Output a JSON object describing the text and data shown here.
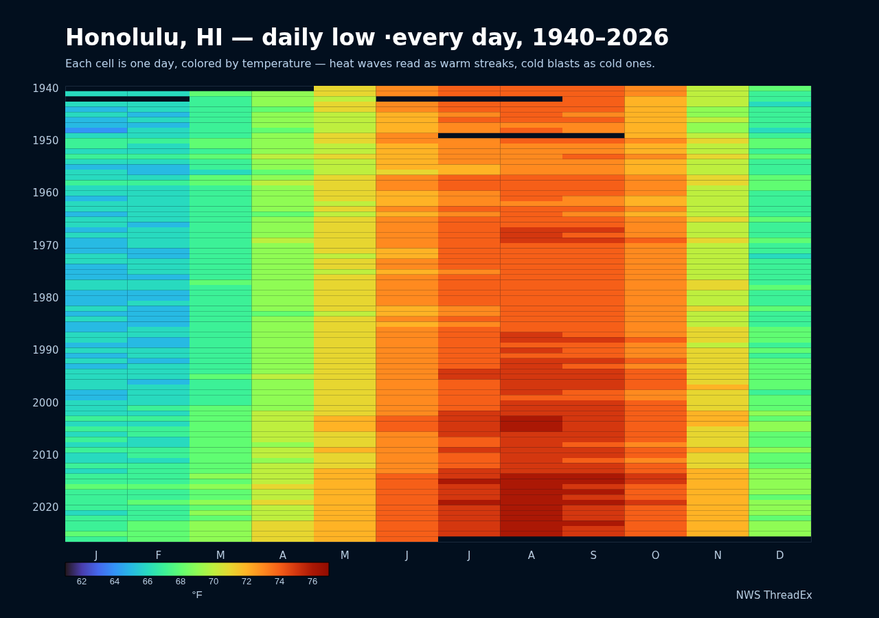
{
  "chart_data": {
    "type": "heatmap",
    "title": "Honolulu, HI — daily low ·every day, 1940–2026",
    "subtitle": "Each cell is one day, colored by temperature — heat waves read as warm streaks, cold blasts as cold ones.",
    "clabel": "°F",
    "clim": [
      61,
      77
    ],
    "cticks": [
      62,
      64,
      66,
      68,
      70,
      72,
      74,
      76
    ],
    "annotations": [
      "NWS ThreadEx"
    ],
    "categories": [
      "J",
      "F",
      "M",
      "A",
      "M",
      "J",
      "J",
      "A",
      "S",
      "O",
      "N",
      "D"
    ],
    "y_categories": [
      "1940",
      null,
      null,
      null,
      null,
      null,
      null,
      null,
      null,
      null,
      "1950",
      null,
      null,
      null,
      null,
      null,
      null,
      null,
      null,
      null,
      "1960",
      null,
      null,
      null,
      null,
      null,
      null,
      null,
      null,
      null,
      "1970",
      null,
      null,
      null,
      null,
      null,
      null,
      null,
      null,
      null,
      "1980",
      null,
      null,
      null,
      null,
      null,
      null,
      null,
      null,
      null,
      "1990",
      null,
      null,
      null,
      null,
      null,
      null,
      null,
      null,
      null,
      "2000",
      null,
      null,
      null,
      null,
      null,
      null,
      null,
      null,
      null,
      "2010",
      null,
      null,
      null,
      null,
      null,
      null,
      null,
      null,
      null,
      "2020",
      null,
      null,
      null,
      null,
      null,
      null
    ],
    "cells": [
      [
        null,
        null,
        null,
        null,
        71,
        73,
        74,
        74,
        74,
        73,
        70,
        68
      ],
      [
        66,
        66,
        68,
        69,
        71,
        73,
        74,
        74,
        74,
        73,
        70,
        67
      ],
      [
        null,
        null,
        67,
        69,
        70,
        null,
        null,
        null,
        74,
        72,
        70,
        67
      ],
      [
        66,
        66,
        67,
        69,
        71,
        73,
        74,
        74,
        74,
        72,
        70,
        66
      ],
      [
        65,
        66,
        67,
        68,
        71,
        73,
        74,
        74,
        74,
        72,
        69,
        67
      ],
      [
        66,
        65,
        67,
        69,
        70,
        72,
        73,
        74,
        73,
        72,
        69,
        67
      ],
      [
        65,
        66,
        67,
        69,
        70,
        72,
        74,
        74,
        74,
        72,
        70,
        67
      ],
      [
        65,
        65,
        67,
        69,
        70,
        72,
        73,
        73,
        73,
        72,
        69,
        67
      ],
      [
        64,
        66,
        67,
        68,
        70,
        72,
        73,
        74,
        73,
        72,
        69,
        66
      ],
      [
        66,
        66,
        67,
        69,
        71,
        73,
        null,
        null,
        null,
        72,
        70,
        67
      ],
      [
        67,
        67,
        68,
        69,
        71,
        73,
        73,
        74,
        74,
        73,
        71,
        68
      ],
      [
        67,
        66,
        68,
        69,
        70,
        72,
        73,
        73,
        73,
        72,
        70,
        68
      ],
      [
        66,
        66,
        67,
        69,
        70,
        72,
        73,
        73,
        73,
        72,
        70,
        67
      ],
      [
        67,
        67,
        68,
        70,
        71,
        72,
        73,
        73,
        74,
        73,
        71,
        68
      ],
      [
        66,
        66,
        67,
        69,
        70,
        72,
        73,
        73,
        73,
        72,
        70,
        67
      ],
      [
        65,
        65,
        67,
        69,
        70,
        72,
        72,
        73,
        73,
        72,
        70,
        67
      ],
      [
        66,
        65,
        66,
        68,
        70,
        71,
        72,
        73,
        73,
        72,
        70,
        67
      ],
      [
        66,
        66,
        68,
        69,
        71,
        73,
        74,
        74,
        74,
        73,
        71,
        68
      ],
      [
        67,
        67,
        68,
        70,
        71,
        73,
        74,
        74,
        74,
        73,
        71,
        68
      ],
      [
        66,
        66,
        67,
        69,
        71,
        73,
        74,
        74,
        74,
        73,
        70,
        68
      ],
      [
        66,
        66,
        67,
        69,
        71,
        72,
        73,
        74,
        74,
        73,
        70,
        67
      ],
      [
        65,
        66,
        67,
        69,
        71,
        72,
        73,
        74,
        73,
        72,
        70,
        67
      ],
      [
        66,
        66,
        67,
        69,
        70,
        72,
        73,
        73,
        73,
        72,
        70,
        67
      ],
      [
        66,
        66,
        67,
        69,
        71,
        73,
        74,
        74,
        74,
        73,
        70,
        67
      ],
      [
        65,
        66,
        67,
        68,
        70,
        72,
        73,
        74,
        73,
        72,
        70,
        67
      ],
      [
        66,
        66,
        67,
        69,
        71,
        73,
        74,
        74,
        74,
        73,
        71,
        68
      ],
      [
        66,
        65,
        67,
        69,
        71,
        73,
        74,
        74,
        74,
        73,
        70,
        67
      ],
      [
        65,
        66,
        67,
        69,
        71,
        73,
        74,
        75,
        75,
        73,
        70,
        67
      ],
      [
        66,
        66,
        67,
        69,
        71,
        73,
        74,
        75,
        74,
        73,
        70,
        67
      ],
      [
        65,
        66,
        67,
        70,
        71,
        73,
        74,
        75,
        75,
        74,
        71,
        68
      ],
      [
        65,
        66,
        67,
        69,
        71,
        73,
        74,
        74,
        74,
        73,
        70,
        67
      ],
      [
        65,
        65,
        67,
        69,
        71,
        72,
        74,
        74,
        74,
        73,
        70,
        67
      ],
      [
        66,
        65,
        67,
        69,
        70,
        72,
        74,
        74,
        74,
        73,
        70,
        66
      ],
      [
        66,
        66,
        67,
        69,
        71,
        73,
        74,
        74,
        74,
        73,
        70,
        67
      ],
      [
        65,
        66,
        67,
        69,
        71,
        73,
        74,
        74,
        74,
        73,
        70,
        67
      ],
      [
        65,
        66,
        67,
        69,
        70,
        72,
        73,
        74,
        74,
        73,
        70,
        67
      ],
      [
        65,
        65,
        67,
        69,
        71,
        73,
        74,
        74,
        74,
        73,
        70,
        67
      ],
      [
        66,
        66,
        68,
        69,
        71,
        73,
        74,
        74,
        74,
        73,
        71,
        67
      ],
      [
        66,
        66,
        67,
        69,
        71,
        73,
        74,
        74,
        74,
        73,
        71,
        68
      ],
      [
        65,
        65,
        67,
        69,
        71,
        73,
        74,
        74,
        74,
        73,
        70,
        67
      ],
      [
        65,
        65,
        67,
        69,
        71,
        73,
        74,
        74,
        74,
        73,
        70,
        67
      ],
      [
        65,
        66,
        67,
        69,
        71,
        73,
        74,
        74,
        74,
        73,
        70,
        67
      ],
      [
        66,
        65,
        67,
        69,
        71,
        72,
        73,
        74,
        74,
        73,
        71,
        68
      ],
      [
        65,
        65,
        67,
        68,
        70,
        72,
        73,
        74,
        74,
        73,
        70,
        67
      ],
      [
        66,
        65,
        67,
        69,
        71,
        73,
        74,
        74,
        74,
        73,
        70,
        67
      ],
      [
        65,
        65,
        67,
        69,
        71,
        72,
        73,
        74,
        74,
        73,
        70,
        67
      ],
      [
        65,
        66,
        67,
        69,
        71,
        73,
        74,
        74,
        74,
        73,
        71,
        68
      ],
      [
        66,
        66,
        67,
        69,
        71,
        73,
        74,
        75,
        74,
        73,
        71,
        68
      ],
      [
        66,
        65,
        67,
        69,
        71,
        73,
        74,
        75,
        75,
        74,
        71,
        68
      ],
      [
        65,
        65,
        67,
        69,
        71,
        73,
        74,
        74,
        74,
        73,
        70,
        67
      ],
      [
        66,
        66,
        67,
        69,
        71,
        73,
        74,
        75,
        74,
        73,
        71,
        68
      ],
      [
        65,
        66,
        67,
        69,
        71,
        73,
        74,
        74,
        74,
        73,
        71,
        67
      ],
      [
        66,
        65,
        67,
        69,
        71,
        73,
        74,
        75,
        75,
        74,
        71,
        68
      ],
      [
        65,
        66,
        67,
        69,
        71,
        73,
        74,
        75,
        74,
        73,
        71,
        68
      ],
      [
        66,
        66,
        67,
        69,
        71,
        73,
        75,
        75,
        75,
        74,
        71,
        68
      ],
      [
        66,
        66,
        68,
        70,
        71,
        73,
        75,
        75,
        75,
        74,
        71,
        68
      ],
      [
        66,
        65,
        67,
        69,
        71,
        73,
        74,
        75,
        75,
        74,
        71,
        68
      ],
      [
        66,
        66,
        67,
        69,
        71,
        73,
        74,
        75,
        75,
        74,
        72,
        68
      ],
      [
        65,
        66,
        67,
        69,
        71,
        73,
        74,
        75,
        74,
        73,
        71,
        67
      ],
      [
        65,
        66,
        67,
        69,
        71,
        73,
        74,
        74,
        74,
        73,
        71,
        68
      ],
      [
        66,
        66,
        67,
        69,
        71,
        73,
        74,
        75,
        75,
        74,
        71,
        68
      ],
      [
        66,
        67,
        68,
        69,
        71,
        73,
        74,
        75,
        75,
        74,
        71,
        68
      ],
      [
        66,
        66,
        68,
        70,
        71,
        73,
        75,
        75,
        75,
        74,
        72,
        69
      ],
      [
        67,
        67,
        68,
        70,
        72,
        74,
        75,
        76,
        75,
        74,
        72,
        68
      ],
      [
        66,
        66,
        68,
        70,
        72,
        74,
        75,
        76,
        75,
        74,
        72,
        69
      ],
      [
        67,
        67,
        68,
        70,
        72,
        74,
        75,
        76,
        75,
        74,
        71,
        69
      ],
      [
        66,
        67,
        68,
        70,
        71,
        73,
        75,
        75,
        75,
        74,
        71,
        68
      ],
      [
        67,
        66,
        68,
        70,
        71,
        73,
        74,
        75,
        75,
        74,
        71,
        68
      ],
      [
        66,
        66,
        68,
        69,
        71,
        73,
        74,
        75,
        74,
        73,
        71,
        68
      ],
      [
        67,
        67,
        68,
        70,
        72,
        73,
        75,
        75,
        75,
        74,
        72,
        69
      ],
      [
        66,
        67,
        68,
        70,
        71,
        73,
        74,
        75,
        75,
        74,
        71,
        68
      ],
      [
        66,
        66,
        68,
        69,
        71,
        73,
        74,
        75,
        74,
        73,
        71,
        68
      ],
      [
        67,
        67,
        68,
        70,
        71,
        73,
        74,
        75,
        75,
        74,
        71,
        68
      ],
      [
        66,
        67,
        68,
        70,
        72,
        73,
        75,
        75,
        75,
        74,
        72,
        69
      ],
      [
        67,
        67,
        69,
        70,
        72,
        74,
        75,
        76,
        76,
        75,
        72,
        69
      ],
      [
        67,
        67,
        68,
        70,
        72,
        74,
        76,
        76,
        76,
        75,
        72,
        69
      ],
      [
        68,
        68,
        69,
        71,
        72,
        74,
        75,
        76,
        75,
        74,
        72,
        69
      ],
      [
        67,
        67,
        68,
        70,
        72,
        74,
        75,
        76,
        76,
        74,
        72,
        69
      ],
      [
        67,
        67,
        68,
        70,
        72,
        74,
        75,
        76,
        75,
        74,
        72,
        68
      ],
      [
        67,
        68,
        69,
        71,
        72,
        74,
        76,
        76,
        76,
        75,
        72,
        69
      ],
      [
        67,
        67,
        68,
        70,
        72,
        74,
        75,
        76,
        75,
        74,
        72,
        69
      ],
      [
        66,
        67,
        69,
        70,
        72,
        74,
        75,
        76,
        75,
        74,
        72,
        69
      ],
      [
        67,
        67,
        68,
        70,
        72,
        74,
        75,
        76,
        75,
        74,
        72,
        68
      ],
      [
        67,
        68,
        69,
        71,
        72,
        74,
        75,
        76,
        76,
        74,
        72,
        69
      ],
      [
        67,
        68,
        69,
        71,
        72,
        74,
        75,
        76,
        75,
        74,
        72,
        69
      ],
      [
        68,
        68,
        69,
        71,
        72,
        74,
        75,
        76,
        75,
        74,
        72,
        69
      ],
      [
        67,
        68,
        69,
        71,
        72,
        74,
        null,
        null,
        null,
        null,
        null,
        null
      ]
    ]
  }
}
